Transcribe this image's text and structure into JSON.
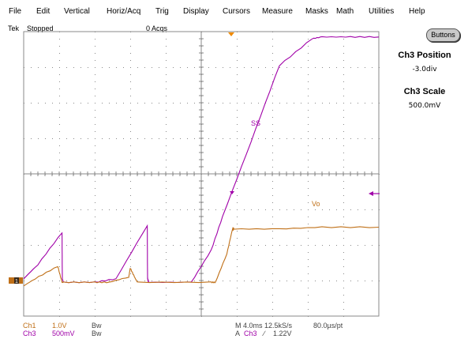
{
  "menu": [
    "File",
    "Edit",
    "Vertical",
    "Horiz/Acq",
    "Trig",
    "Display",
    "Cursors",
    "Measure",
    "Masks",
    "Math",
    "Utilities",
    "Help"
  ],
  "status": {
    "brand": "Tek",
    "run_state": "Stopped",
    "acquisitions": "0 Acqs"
  },
  "buttons_label": "Buttons",
  "side_panel": {
    "position_title": "Ch3 Position",
    "position_value": "-3.0div",
    "scale_title": "Ch3 Scale",
    "scale_value": "500.0mV"
  },
  "trace_labels": {
    "ss": "SS",
    "vo": "Vo"
  },
  "ground_marker": "1",
  "footer": {
    "ch1_name": "Ch1",
    "ch1_scale": "1.0V",
    "ch1_bw": "Bw",
    "ch3_name": "Ch3",
    "ch3_scale": "500mV",
    "ch3_bw": "Bw",
    "horizontal": "M 4.0ms 12.5kS/s",
    "resolution": "80.0µs/pt",
    "trigger_mode": "A",
    "trigger_source": "Ch3",
    "trigger_slope": "∕",
    "trigger_level": "1.22V"
  },
  "colors": {
    "ch1": "#c07018",
    "ch3": "#a000a8",
    "grid": "#8a8a8a",
    "background": "#ffffff"
  },
  "icons": {
    "trigger_position": "triangle-down-marker",
    "trigger_level": "arrow-left-marker",
    "ground_reference": "ch1-ground-marker"
  },
  "chart_data": {
    "type": "line",
    "x_divisions": 10,
    "y_divisions": 8,
    "xlabel": "",
    "ylabel": "",
    "grid": true,
    "series": [
      {
        "name": "SS",
        "channel": "Ch3",
        "x": [
          0.0,
          0.5,
          1.35,
          1.36,
          1.4,
          2.5,
          3.25,
          4.35,
          4.36,
          4.4,
          5.9,
          6.6,
          7.0,
          8.0,
          9.0,
          10.15,
          10.5,
          11.5,
          12.5
        ],
        "y": [
          1.05,
          1.45,
          2.35,
          1.05,
          0.95,
          0.95,
          1.05,
          2.55,
          1.05,
          0.95,
          0.95,
          1.85,
          2.8,
          4.9,
          7.05,
          7.8,
          7.85,
          7.85,
          7.85
        ]
      },
      {
        "name": "Vo",
        "channel": "Ch1",
        "x": [
          0.0,
          0.4,
          1.2,
          1.35,
          1.4,
          2.5,
          3.0,
          3.7,
          3.75,
          3.9,
          4.0,
          6.6,
          6.75,
          7.15,
          7.35,
          7.4,
          9.0,
          10.5,
          12.5
        ],
        "y": [
          0.85,
          1.05,
          1.4,
          0.95,
          0.95,
          0.95,
          0.95,
          1.1,
          1.35,
          1.1,
          0.95,
          0.95,
          0.95,
          1.75,
          2.45,
          2.45,
          2.45,
          2.5,
          2.5
        ]
      }
    ]
  }
}
